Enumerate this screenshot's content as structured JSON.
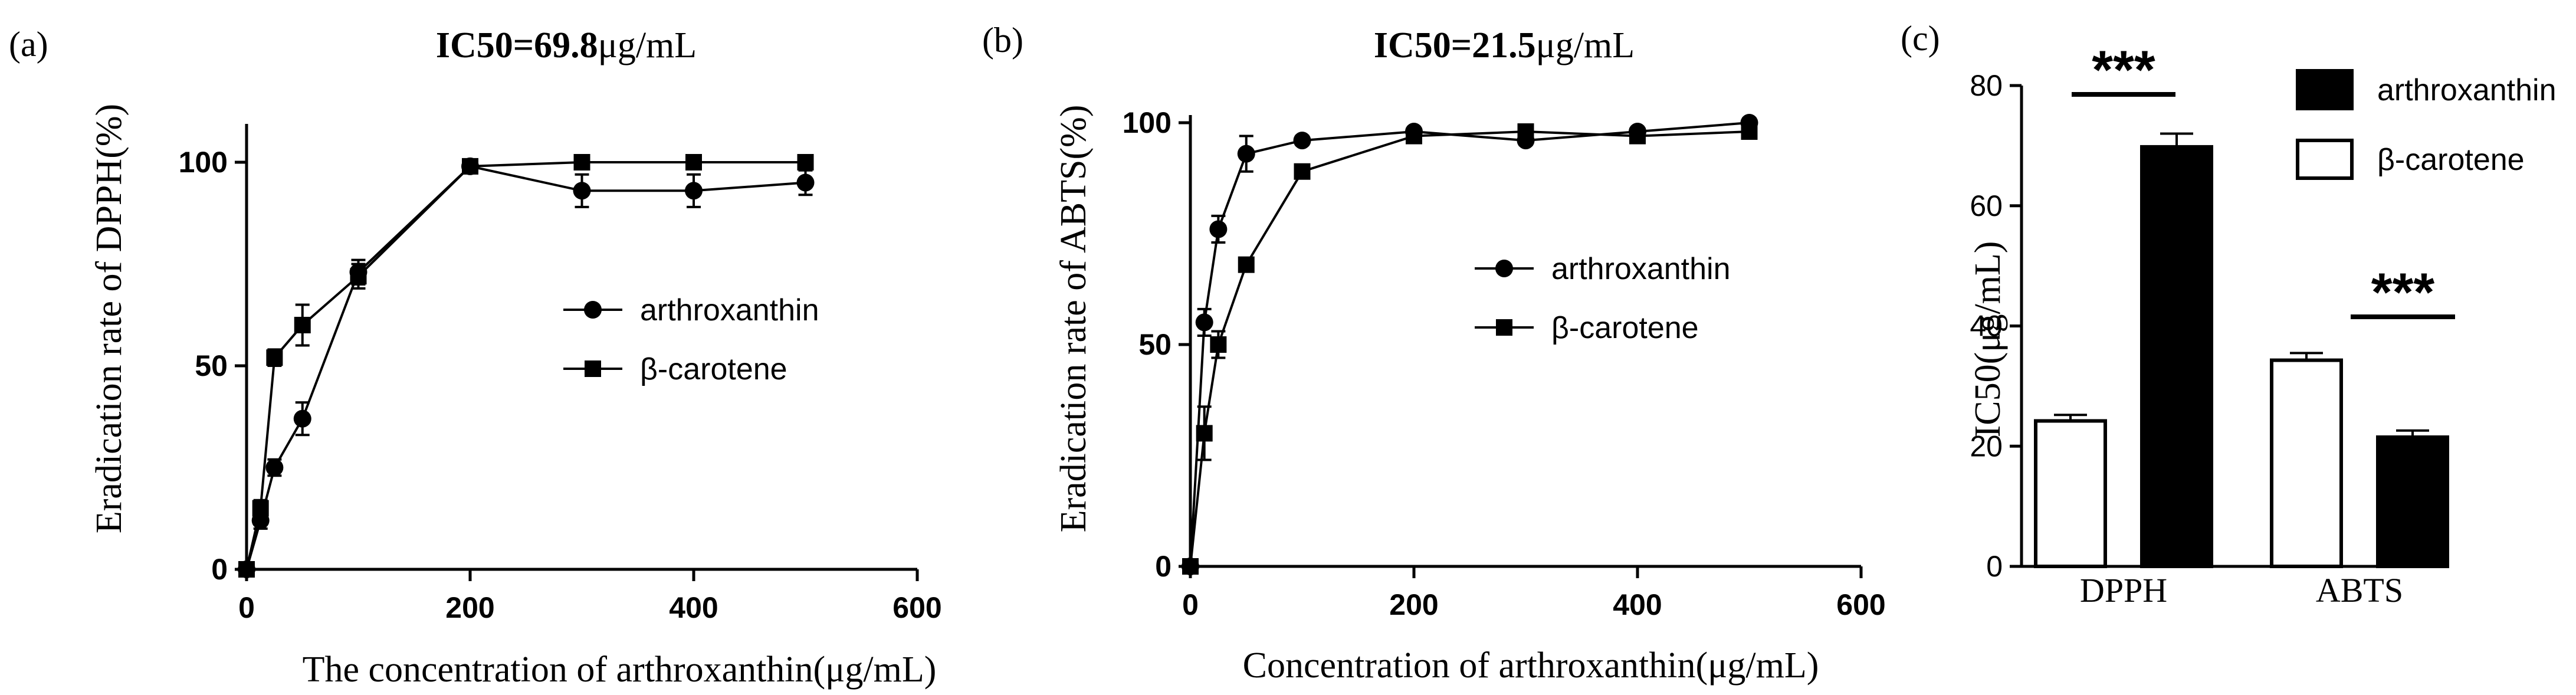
{
  "panels": [
    {
      "label": "(a)",
      "title_bold": "IC50=69.8",
      "title_unit": "μg/mL",
      "xlabel": "The concentration of arthroxanthin(μg/mL)",
      "ylabel": "Eradication rate of DPPH(%)"
    },
    {
      "label": "(b)",
      "title_bold": "IC50=21.5",
      "title_unit": "μg/mL",
      "xlabel": "Concentration of arthroxanthin(μg/mL)",
      "ylabel": "Eradication rate of ABTS(%)"
    },
    {
      "label": "(c)",
      "ylabel": "IC50(μg/mL)",
      "significance": [
        "***",
        "***"
      ]
    }
  ],
  "chart_data": [
    {
      "type": "line",
      "title": "IC50=69.8μg/mL",
      "xlabel": "The concentration of arthroxanthin(μg/mL)",
      "ylabel": "Eradication rate of DPPH(%)",
      "xlim": [
        0,
        600
      ],
      "ylim": [
        0,
        110
      ],
      "xticks": [
        0,
        200,
        400,
        600
      ],
      "yticks": [
        0,
        50,
        100
      ],
      "legend_position": "center-right",
      "series": [
        {
          "name": "arthroxanthin",
          "marker": "circle",
          "x": [
            0,
            12.5,
            25,
            50,
            100,
            200,
            300,
            400,
            500
          ],
          "y": [
            0,
            12,
            25,
            37,
            73,
            99,
            93,
            93,
            95
          ],
          "err": [
            0,
            2,
            2,
            4,
            3,
            1,
            4,
            4,
            3
          ]
        },
        {
          "name": "β-carotene",
          "marker": "square",
          "x": [
            0,
            12.5,
            25,
            50,
            100,
            200,
            300,
            400,
            500
          ],
          "y": [
            0,
            15,
            52,
            60,
            72,
            99,
            100,
            100,
            100
          ],
          "err": [
            0,
            2,
            2,
            5,
            3,
            1,
            1,
            1,
            1
          ]
        }
      ]
    },
    {
      "type": "line",
      "title": "IC50=21.5μg/mL",
      "xlabel": "Concentration of arthroxanthin(μg/mL)",
      "ylabel": "Eradication rate of ABTS(%)",
      "xlim": [
        0,
        600
      ],
      "ylim": [
        0,
        105
      ],
      "xticks": [
        0,
        200,
        400,
        600
      ],
      "yticks": [
        0,
        50,
        100
      ],
      "legend_position": "center-right",
      "series": [
        {
          "name": "arthroxanthin",
          "marker": "circle",
          "x": [
            0,
            12.5,
            25,
            50,
            100,
            200,
            300,
            400,
            500
          ],
          "y": [
            0,
            55,
            76,
            93,
            96,
            98,
            96,
            98,
            100
          ],
          "err": [
            0,
            3,
            3,
            4,
            1,
            1,
            1,
            1,
            1
          ]
        },
        {
          "name": "β-carotene",
          "marker": "square",
          "x": [
            0,
            12.5,
            25,
            50,
            100,
            200,
            300,
            400,
            500
          ],
          "y": [
            0,
            30,
            50,
            68,
            89,
            97,
            98,
            97,
            98
          ],
          "err": [
            0,
            6,
            3,
            1,
            1,
            1,
            1,
            1,
            1
          ]
        }
      ]
    },
    {
      "type": "bar",
      "ylabel": "IC50(μg/mL)",
      "categories": [
        "DPPH",
        "ABTS"
      ],
      "ylim": [
        0,
        80
      ],
      "yticks": [
        0,
        20,
        40,
        60,
        80
      ],
      "legend_position": "top-right",
      "series": [
        {
          "name": "arthroxanthin",
          "fill": "#000000",
          "values": [
            69.8,
            21.5
          ],
          "err": [
            2.2,
            1.1
          ]
        },
        {
          "name": "β-carotene",
          "fill": "#ffffff",
          "values": [
            24.2,
            34.3
          ],
          "err": [
            1.0,
            1.2
          ]
        }
      ],
      "significance": [
        "***",
        "***"
      ]
    }
  ]
}
